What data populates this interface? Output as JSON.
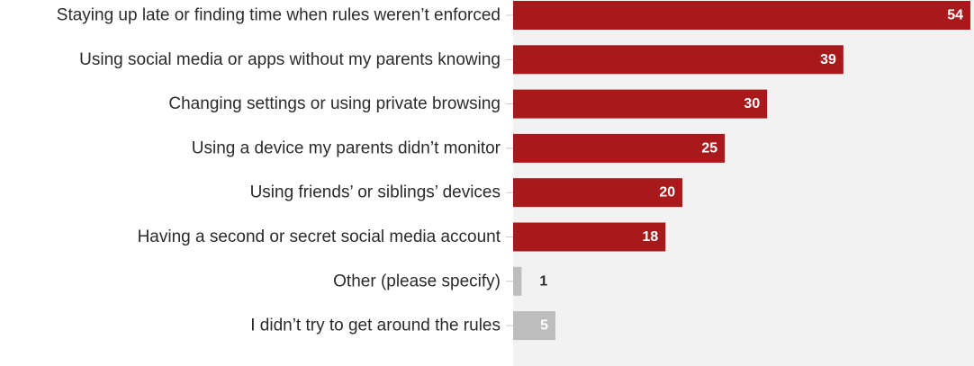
{
  "chart_data": {
    "type": "bar",
    "orientation": "horizontal",
    "categories": [
      "Staying up late or finding time when rules weren’t enforced",
      "Using social media or apps without my parents knowing",
      "Changing settings or using private browsing",
      "Using a device my parents didn’t monitor",
      "Using friends’ or siblings’ devices",
      "Having a second or secret social media account",
      "Other (please specify)",
      "I didn’t try to get around the rules"
    ],
    "values": [
      54,
      39,
      30,
      25,
      20,
      18,
      1,
      5
    ],
    "bar_colors": [
      "#a8191c",
      "#a8191c",
      "#a8191c",
      "#a8191c",
      "#a8191c",
      "#a8191c",
      "#bdbdbd",
      "#bdbdbd"
    ],
    "xlim": [
      0,
      54
    ],
    "grid": false,
    "title": "",
    "xlabel": "",
    "ylabel": ""
  },
  "colors": {
    "accent": "#a8191c",
    "neutral": "#bdbdbd",
    "plot_background": "#f2f2f2",
    "label_text": "#2b2b2b"
  }
}
